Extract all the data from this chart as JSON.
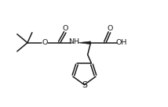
{
  "background_color": "#ffffff",
  "line_color": "#1a1a1a",
  "line_width": 1.1,
  "font_size": 6.8,
  "figsize": [
    2.14,
    1.37
  ],
  "dpi": 100,
  "xlim": [
    0,
    10
  ],
  "ylim": [
    0,
    6.4
  ]
}
